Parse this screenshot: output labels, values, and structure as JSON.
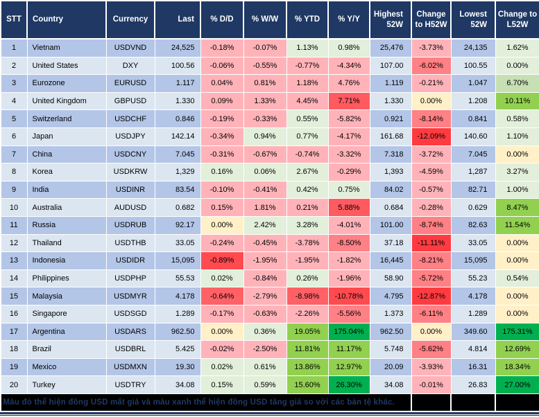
{
  "palette": {
    "b1": "#B4C6E7",
    "b2": "#DCE6F1",
    "p1": "#FFB3B9",
    "p2": "#FF8085",
    "r1": "#FF5A5F",
    "r2": "#FF4A4F",
    "r3": "#FF3B40",
    "r4": "#FF6166",
    "cr": "#FFF0C8",
    "g1": "#E2EFDA",
    "g2": "#C6E0B4",
    "g3": "#92D050",
    "g4": "#00B050",
    "header_bg": "#1F3864",
    "footer_bg": "#000000",
    "footer_text": "#1F3864"
  },
  "table": {
    "columns": [
      {
        "key": "stt",
        "label": "STT"
      },
      {
        "key": "country",
        "label": "Country"
      },
      {
        "key": "currency",
        "label": "Currency"
      },
      {
        "key": "last",
        "label": "Last"
      },
      {
        "key": "dd",
        "label": "% D/D"
      },
      {
        "key": "ww",
        "label": "% W/W"
      },
      {
        "key": "ytd",
        "label": "% YTD"
      },
      {
        "key": "yy",
        "label": "% Y/Y"
      },
      {
        "key": "h52w",
        "label": "Highest 52W"
      },
      {
        "key": "chg-h52w",
        "label": "Change to H52W"
      },
      {
        "key": "l52w",
        "label": "Lowest 52W"
      },
      {
        "key": "chg-l52w",
        "label": "Change to L52W"
      }
    ],
    "rows": [
      {
        "cells": [
          [
            "1",
            "b1"
          ],
          [
            "Vietnam",
            "b1"
          ],
          [
            "USDVND",
            "b1"
          ],
          [
            "24,525",
            "b1"
          ],
          [
            "-0.18%",
            "p1"
          ],
          [
            "-0.07%",
            "p1"
          ],
          [
            "1.13%",
            "g1"
          ],
          [
            "0.98%",
            "g1"
          ],
          [
            "25,476",
            "b1"
          ],
          [
            "-3.73%",
            "p1"
          ],
          [
            "24,135",
            "b1"
          ],
          [
            "1.62%",
            "g1"
          ]
        ]
      },
      {
        "cells": [
          [
            "2",
            "b2"
          ],
          [
            "United States",
            "b2"
          ],
          [
            "DXY",
            "b2"
          ],
          [
            "100.56",
            "b2"
          ],
          [
            "-0.06%",
            "p1"
          ],
          [
            "-0.55%",
            "p1"
          ],
          [
            "-0.77%",
            "p1"
          ],
          [
            "-4.34%",
            "p1"
          ],
          [
            "107.00",
            "b2"
          ],
          [
            "-6.02%",
            "p2"
          ],
          [
            "100.55",
            "b2"
          ],
          [
            "0.00%",
            "g1"
          ]
        ]
      },
      {
        "cells": [
          [
            "3",
            "b1"
          ],
          [
            "Eurozone",
            "b1"
          ],
          [
            "EURUSD",
            "b1"
          ],
          [
            "1.117",
            "b1"
          ],
          [
            "0.04%",
            "p1"
          ],
          [
            "0.81%",
            "p1"
          ],
          [
            "1.18%",
            "p1"
          ],
          [
            "4.76%",
            "p1"
          ],
          [
            "1.119",
            "b1"
          ],
          [
            "-0.21%",
            "p1"
          ],
          [
            "1.047",
            "b1"
          ],
          [
            "6.70%",
            "g2"
          ]
        ]
      },
      {
        "cells": [
          [
            "4",
            "b2"
          ],
          [
            "United Kingdom",
            "b2"
          ],
          [
            "GBPUSD",
            "b2"
          ],
          [
            "1.330",
            "b2"
          ],
          [
            "0.09%",
            "p1"
          ],
          [
            "1.33%",
            "p1"
          ],
          [
            "4.45%",
            "p1"
          ],
          [
            "7.71%",
            "r1"
          ],
          [
            "1.330",
            "b2"
          ],
          [
            "0.00%",
            "cr"
          ],
          [
            "1.208",
            "b2"
          ],
          [
            "10.11%",
            "g3"
          ]
        ]
      },
      {
        "cells": [
          [
            "5",
            "b1"
          ],
          [
            "Switzerland",
            "b1"
          ],
          [
            "USDCHF",
            "b1"
          ],
          [
            "0.846",
            "b1"
          ],
          [
            "-0.19%",
            "p1"
          ],
          [
            "-0.33%",
            "p1"
          ],
          [
            "0.55%",
            "g1"
          ],
          [
            "-5.82%",
            "p1"
          ],
          [
            "0.921",
            "b1"
          ],
          [
            "-8.14%",
            "p2"
          ],
          [
            "0.841",
            "b1"
          ],
          [
            "0.58%",
            "g1"
          ]
        ]
      },
      {
        "cells": [
          [
            "6",
            "b2"
          ],
          [
            "Japan",
            "b2"
          ],
          [
            "USDJPY",
            "b2"
          ],
          [
            "142.14",
            "b2"
          ],
          [
            "-0.34%",
            "p1"
          ],
          [
            "0.94%",
            "g1"
          ],
          [
            "0.77%",
            "g1"
          ],
          [
            "-4.17%",
            "p1"
          ],
          [
            "161.68",
            "b2"
          ],
          [
            "-12.09%",
            "r3"
          ],
          [
            "140.60",
            "b2"
          ],
          [
            "1.10%",
            "g1"
          ]
        ]
      },
      {
        "cells": [
          [
            "7",
            "b1"
          ],
          [
            "China",
            "b1"
          ],
          [
            "USDCNY",
            "b1"
          ],
          [
            "7.045",
            "b1"
          ],
          [
            "-0.31%",
            "p1"
          ],
          [
            "-0.67%",
            "p1"
          ],
          [
            "-0.74%",
            "p1"
          ],
          [
            "-3.32%",
            "p1"
          ],
          [
            "7.318",
            "b1"
          ],
          [
            "-3.72%",
            "p1"
          ],
          [
            "7.045",
            "b1"
          ],
          [
            "0.00%",
            "cr"
          ]
        ]
      },
      {
        "cells": [
          [
            "8",
            "b2"
          ],
          [
            "Korea",
            "b2"
          ],
          [
            "USDKRW",
            "b2"
          ],
          [
            "1,329",
            "b2"
          ],
          [
            "0.16%",
            "g1"
          ],
          [
            "0.06%",
            "g1"
          ],
          [
            "2.67%",
            "g1"
          ],
          [
            "-0.29%",
            "p1"
          ],
          [
            "1,393",
            "b2"
          ],
          [
            "-4.59%",
            "p1"
          ],
          [
            "1,287",
            "b2"
          ],
          [
            "3.27%",
            "g1"
          ]
        ]
      },
      {
        "cells": [
          [
            "9",
            "b1"
          ],
          [
            "India",
            "b1"
          ],
          [
            "USDINR",
            "b1"
          ],
          [
            "83.54",
            "b1"
          ],
          [
            "-0.10%",
            "p1"
          ],
          [
            "-0.41%",
            "p1"
          ],
          [
            "0.42%",
            "g1"
          ],
          [
            "0.75%",
            "g1"
          ],
          [
            "84.02",
            "b1"
          ],
          [
            "-0.57%",
            "p1"
          ],
          [
            "82.71",
            "b1"
          ],
          [
            "1.00%",
            "g1"
          ]
        ]
      },
      {
        "cells": [
          [
            "10",
            "b2"
          ],
          [
            "Australia",
            "b2"
          ],
          [
            "AUDUSD",
            "b2"
          ],
          [
            "0.682",
            "b2"
          ],
          [
            "0.15%",
            "p1"
          ],
          [
            "1.81%",
            "p1"
          ],
          [
            "0.21%",
            "p1"
          ],
          [
            "5.88%",
            "r1"
          ],
          [
            "0.684",
            "b2"
          ],
          [
            "-0.28%",
            "p1"
          ],
          [
            "0.629",
            "b2"
          ],
          [
            "8.47%",
            "g3"
          ]
        ]
      },
      {
        "cells": [
          [
            "11",
            "b1"
          ],
          [
            "Russia",
            "b1"
          ],
          [
            "USDRUB",
            "b1"
          ],
          [
            "92.17",
            "b1"
          ],
          [
            "0.00%",
            "cr"
          ],
          [
            "2.42%",
            "g1"
          ],
          [
            "3.28%",
            "g1"
          ],
          [
            "-4.01%",
            "p1"
          ],
          [
            "101.00",
            "b1"
          ],
          [
            "-8.74%",
            "p2"
          ],
          [
            "82.63",
            "b1"
          ],
          [
            "11.54%",
            "g3"
          ]
        ]
      },
      {
        "cells": [
          [
            "12",
            "b2"
          ],
          [
            "Thailand",
            "b2"
          ],
          [
            "USDTHB",
            "b2"
          ],
          [
            "33.05",
            "b2"
          ],
          [
            "-0.24%",
            "p1"
          ],
          [
            "-0.45%",
            "p1"
          ],
          [
            "-3.78%",
            "p1"
          ],
          [
            "-8.50%",
            "p2"
          ],
          [
            "37.18",
            "b2"
          ],
          [
            "-11.11%",
            "r3"
          ],
          [
            "33.05",
            "b2"
          ],
          [
            "0.00%",
            "cr"
          ]
        ]
      },
      {
        "cells": [
          [
            "13",
            "b1"
          ],
          [
            "Indonesia",
            "b1"
          ],
          [
            "USDIDR",
            "b1"
          ],
          [
            "15,095",
            "b1"
          ],
          [
            "-0.89%",
            "r2"
          ],
          [
            "-1.95%",
            "p1"
          ],
          [
            "-1.95%",
            "p1"
          ],
          [
            "-1.82%",
            "p1"
          ],
          [
            "16,445",
            "b1"
          ],
          [
            "-8.21%",
            "p2"
          ],
          [
            "15,095",
            "b1"
          ],
          [
            "0.00%",
            "cr"
          ]
        ]
      },
      {
        "cells": [
          [
            "14",
            "b2"
          ],
          [
            "Philippines",
            "b2"
          ],
          [
            "USDPHP",
            "b2"
          ],
          [
            "55.53",
            "b2"
          ],
          [
            "0.02%",
            "g1"
          ],
          [
            "-0.84%",
            "p1"
          ],
          [
            "0.26%",
            "g1"
          ],
          [
            "-1.96%",
            "p1"
          ],
          [
            "58.90",
            "b2"
          ],
          [
            "-5.72%",
            "p2"
          ],
          [
            "55.23",
            "b2"
          ],
          [
            "0.54%",
            "g1"
          ]
        ]
      },
      {
        "cells": [
          [
            "15",
            "b1"
          ],
          [
            "Malaysia",
            "b1"
          ],
          [
            "USDMYR",
            "b1"
          ],
          [
            "4.178",
            "b1"
          ],
          [
            "-0.64%",
            "r4"
          ],
          [
            "-2.79%",
            "p1"
          ],
          [
            "-8.98%",
            "r4"
          ],
          [
            "-10.78%",
            "r2"
          ],
          [
            "4.795",
            "b1"
          ],
          [
            "-12.87%",
            "r3"
          ],
          [
            "4.178",
            "b1"
          ],
          [
            "0.00%",
            "cr"
          ]
        ]
      },
      {
        "cells": [
          [
            "16",
            "b2"
          ],
          [
            "Singapore",
            "b2"
          ],
          [
            "USDSGD",
            "b2"
          ],
          [
            "1.289",
            "b2"
          ],
          [
            "-0.17%",
            "p1"
          ],
          [
            "-0.63%",
            "p1"
          ],
          [
            "-2.26%",
            "p1"
          ],
          [
            "-5.56%",
            "p2"
          ],
          [
            "1.373",
            "b2"
          ],
          [
            "-6.11%",
            "p2"
          ],
          [
            "1.289",
            "b2"
          ],
          [
            "0.00%",
            "cr"
          ]
        ]
      },
      {
        "cells": [
          [
            "17",
            "b1"
          ],
          [
            "Argentina",
            "b1"
          ],
          [
            "USDARS",
            "b1"
          ],
          [
            "962.50",
            "b1"
          ],
          [
            "0.00%",
            "cr"
          ],
          [
            "0.36%",
            "g1"
          ],
          [
            "19.05%",
            "g3"
          ],
          [
            "175.04%",
            "g4"
          ],
          [
            "962.50",
            "b1"
          ],
          [
            "0.00%",
            "cr"
          ],
          [
            "349.60",
            "b1"
          ],
          [
            "175.31%",
            "g4"
          ]
        ]
      },
      {
        "cells": [
          [
            "18",
            "b2"
          ],
          [
            "Brazil",
            "b2"
          ],
          [
            "USDBRL",
            "b2"
          ],
          [
            "5.425",
            "b2"
          ],
          [
            "-0.02%",
            "p1"
          ],
          [
            "-2.50%",
            "p1"
          ],
          [
            "11.81%",
            "g3"
          ],
          [
            "11.17%",
            "g3"
          ],
          [
            "5.748",
            "b2"
          ],
          [
            "-5.62%",
            "p2"
          ],
          [
            "4.814",
            "b2"
          ],
          [
            "12.69%",
            "g3"
          ]
        ]
      },
      {
        "cells": [
          [
            "19",
            "b1"
          ],
          [
            "Mexico",
            "b1"
          ],
          [
            "USDMXN",
            "b1"
          ],
          [
            "19.30",
            "b1"
          ],
          [
            "0.02%",
            "g1"
          ],
          [
            "0.61%",
            "g1"
          ],
          [
            "13.86%",
            "g3"
          ],
          [
            "12.97%",
            "g3"
          ],
          [
            "20.09",
            "b1"
          ],
          [
            "-3.93%",
            "p1"
          ],
          [
            "16.31",
            "b1"
          ],
          [
            "18.34%",
            "g3"
          ]
        ]
      },
      {
        "cells": [
          [
            "20",
            "b2"
          ],
          [
            "Turkey",
            "b2"
          ],
          [
            "USDTRY",
            "b2"
          ],
          [
            "34.08",
            "b2"
          ],
          [
            "0.15%",
            "g1"
          ],
          [
            "0.59%",
            "g1"
          ],
          [
            "15.60%",
            "g3"
          ],
          [
            "26.30%",
            "g4"
          ],
          [
            "34.08",
            "b2"
          ],
          [
            "-0.01%",
            "p1"
          ],
          [
            "26.83",
            "b2"
          ],
          [
            "27.00%",
            "g4"
          ]
        ]
      }
    ]
  },
  "footer": {
    "note": "Màu đỏ thể hiện đồng USD mất giá và màu xanh thể hiện đồng USD tăng giá so với các bản tệ khác."
  }
}
